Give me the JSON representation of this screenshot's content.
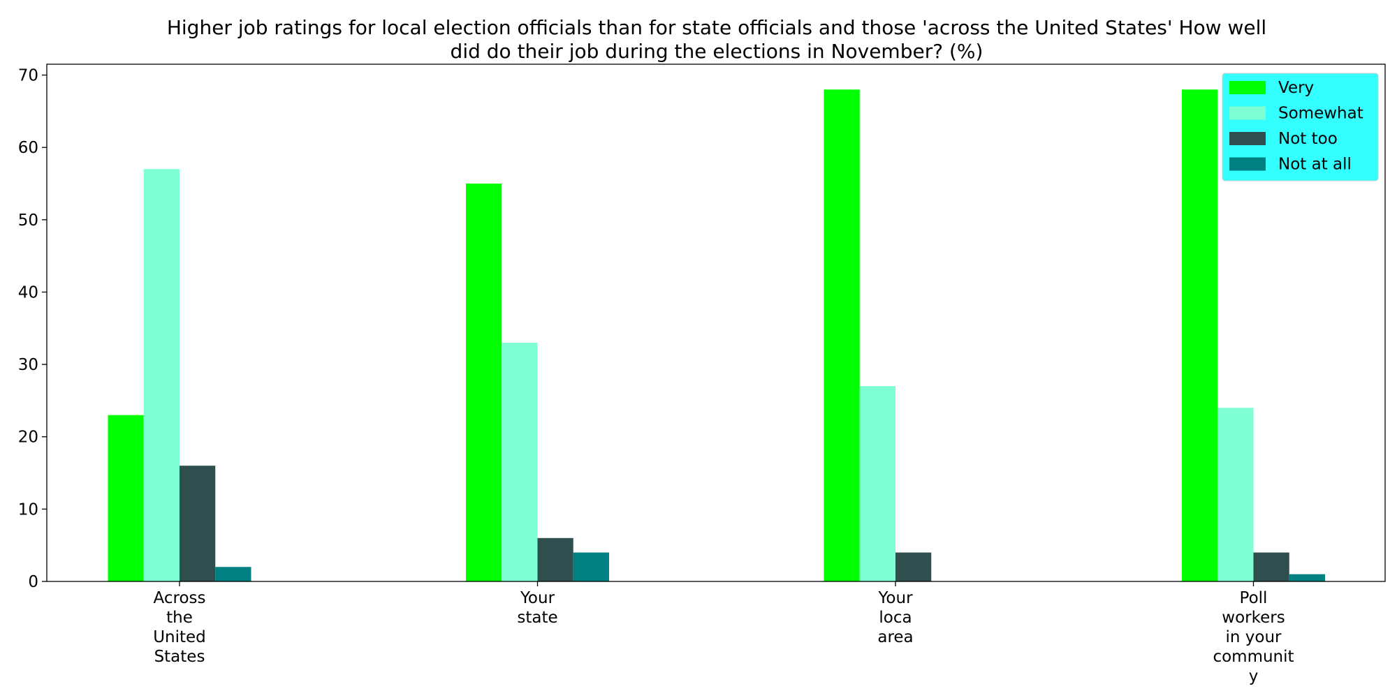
{
  "chart_data": {
    "type": "bar",
    "title_lines": [
      "Higher job ratings for local election officials than for state officials and those 'across the United States' How well",
      "did do their job during the elections in November? (%)"
    ],
    "categories": [
      "Across the United States",
      "Your state",
      "Your loca area",
      "Poll workers in your community"
    ],
    "category_label_lines": [
      [
        "Across",
        "the",
        "United",
        "States"
      ],
      [
        "Your",
        "state"
      ],
      [
        "Your",
        "loca",
        "area"
      ],
      [
        "Poll",
        "workers",
        "in your",
        "communit",
        "y"
      ]
    ],
    "series": [
      {
        "name": "Very",
        "color": "#00ff00",
        "values": [
          23,
          55,
          68,
          68
        ]
      },
      {
        "name": "Somewhat",
        "color": "#7fffd4",
        "values": [
          57,
          33,
          27,
          24
        ]
      },
      {
        "name": "Not too",
        "color": "#2f4f4f",
        "values": [
          16,
          6,
          4,
          4
        ]
      },
      {
        "name": "Not at all",
        "color": "#008080",
        "values": [
          2,
          4,
          0,
          1
        ]
      }
    ],
    "ylim": [
      0,
      71.5
    ],
    "yticks": [
      "0",
      "10",
      "20",
      "30",
      "40",
      "50",
      "60",
      "70"
    ],
    "xlabel": "",
    "ylabel": "",
    "grid": false,
    "legend": {
      "position": "top-right",
      "background": "#33ffff"
    }
  }
}
